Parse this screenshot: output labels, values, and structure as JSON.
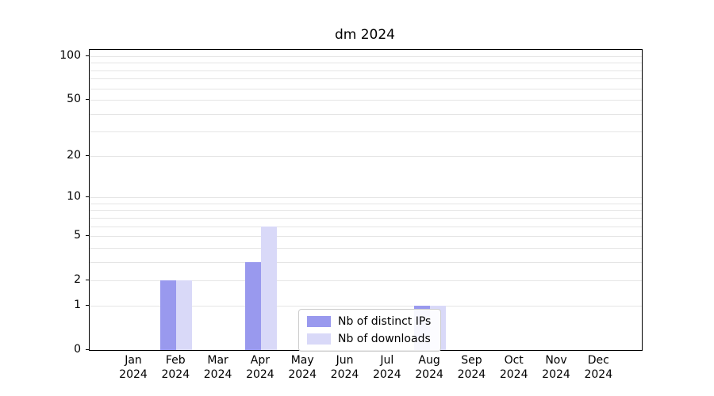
{
  "title": "dm 2024",
  "chart_data": {
    "type": "bar",
    "title": "dm 2024",
    "categories": [
      "Jan",
      "Feb",
      "Mar",
      "Apr",
      "May",
      "Jun",
      "Jul",
      "Aug",
      "Sep",
      "Oct",
      "Nov",
      "Dec"
    ],
    "category_year": "2024",
    "series": [
      {
        "name": "Nb of distinct IPs",
        "color": "#9999ee",
        "values": [
          0,
          2,
          0,
          3,
          0,
          0,
          0,
          1,
          0,
          0,
          0,
          0
        ]
      },
      {
        "name": "Nb of downloads",
        "color": "#d9d9f8",
        "values": [
          0,
          2,
          0,
          6,
          0,
          0,
          0,
          1,
          0,
          0,
          0,
          0
        ]
      }
    ],
    "yticks": [
      0,
      1,
      2,
      5,
      10,
      20,
      50,
      100
    ],
    "gridlines": [
      1,
      2,
      3,
      4,
      5,
      6,
      7,
      8,
      9,
      10,
      20,
      30,
      40,
      50,
      60,
      70,
      80,
      90,
      100
    ],
    "scale": "log1p",
    "ylim": [
      0,
      100
    ],
    "grid": "horizontal",
    "legend_position": "lower-center",
    "colors": {
      "axis": "#000000",
      "grid": "#e5e5e5",
      "legend_border": "#cccccc",
      "background": "#ffffff"
    }
  }
}
